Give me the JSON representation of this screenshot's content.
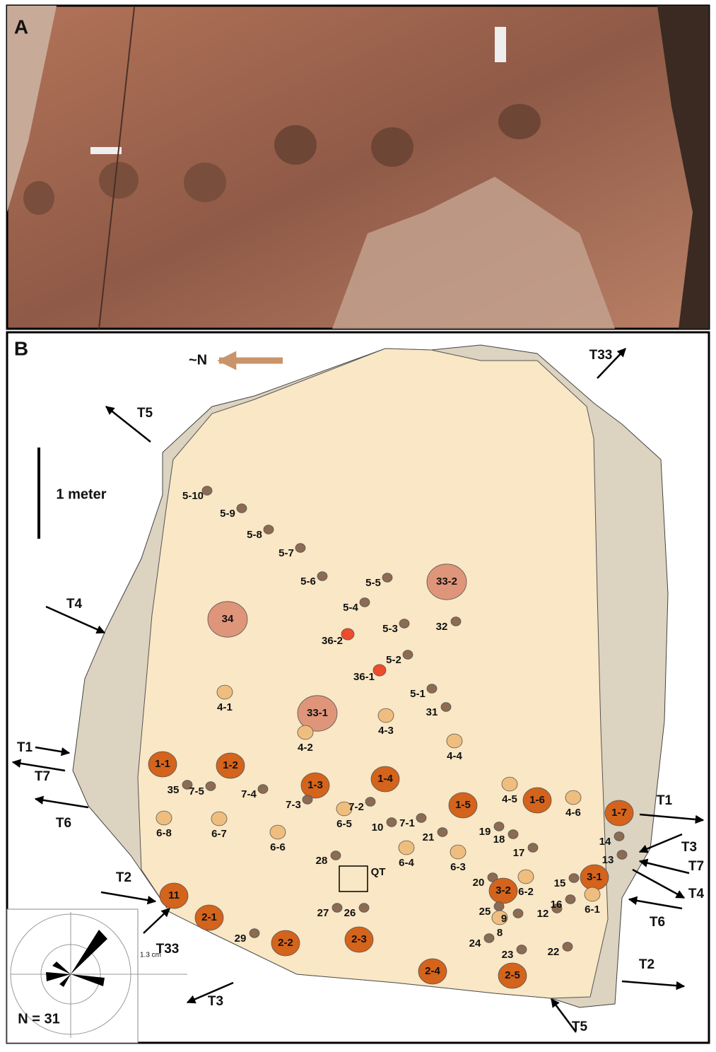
{
  "panel_a": {
    "label": "A"
  },
  "panel_b": {
    "label": "B",
    "north_label": "~N",
    "scale_label": "1 meter",
    "trackway_labels": [
      "T5",
      "T33",
      "T4",
      "T1",
      "T7",
      "T6",
      "T2",
      "T33",
      "T3",
      "T1",
      "T3",
      "T7",
      "T4",
      "T6",
      "T2",
      "T5"
    ],
    "track_labels": [
      "5-10",
      "5-9",
      "5-8",
      "5-7",
      "5-6",
      "5-5",
      "33-2",
      "34",
      "5-4",
      "5-3",
      "32",
      "36-2",
      "5-2",
      "36-1",
      "5-1",
      "4-1",
      "31",
      "33-1",
      "4-3",
      "4-2",
      "4-4",
      "1-1",
      "1-2",
      "35",
      "7-5",
      "7-4",
      "1-3",
      "1-4",
      "7-3",
      "7-2",
      "1-5",
      "4-5",
      "1-6",
      "1-7",
      "7-1",
      "6-8",
      "6-7",
      "6-6",
      "6-5",
      "10",
      "19",
      "18",
      "4-6",
      "14",
      "21",
      "6-4",
      "28",
      "17",
      "13",
      "6-3",
      "QT",
      "20",
      "3-2",
      "6-2",
      "3-1",
      "15",
      "16",
      "11",
      "6-1",
      "25",
      "9",
      "12",
      "27",
      "26",
      "2-1",
      "29",
      "8",
      "2-2",
      "2-3",
      "24",
      "23",
      "22",
      "2-4",
      "2-5"
    ],
    "rose": {
      "scale_label": "1.3 cm",
      "n_label": "N = 31"
    }
  }
}
